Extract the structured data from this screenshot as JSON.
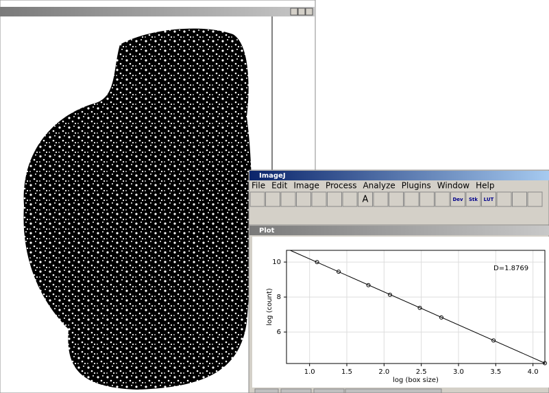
{
  "imagej_window": {
    "title": "ImageJ",
    "menu": [
      "File",
      "Edit",
      "Image",
      "Process",
      "Analyze",
      "Plugins",
      "Window",
      "Help"
    ],
    "toolbar_labels": [
      "A",
      "Dev",
      "Stk",
      "LUT"
    ]
  },
  "plot_window": {
    "title": "Plot",
    "chart_data": {
      "type": "scatter",
      "x_label": "log (box size)",
      "y_label": "log (count)",
      "annotation": "D=1.8769",
      "x": [
        1.1,
        1.39,
        1.79,
        2.08,
        2.48,
        2.77,
        3.47,
        4.16
      ],
      "series": [
        {
          "values": [
            10.0,
            9.45,
            8.68,
            8.13,
            7.38,
            6.83,
            5.52,
            4.22
          ],
          "color": "#000000"
        }
      ],
      "fit_line": {
        "x": [
          0.74,
          4.16
        ],
        "y": [
          10.67,
          4.22
        ]
      },
      "xlim": [
        0.69,
        4.16
      ],
      "ylim": [
        4.2,
        10.67
      ],
      "xticks": [
        {
          "value": 1,
          "label": "1.0"
        },
        1.5,
        {
          "value": 2,
          "label": "2.0"
        },
        2.5,
        {
          "value": 3,
          "label": "3.0"
        },
        3.5,
        {
          "value": 4,
          "label": "4.0"
        }
      ],
      "yticks": [
        6,
        8,
        10
      ],
      "grid": true
    }
  }
}
